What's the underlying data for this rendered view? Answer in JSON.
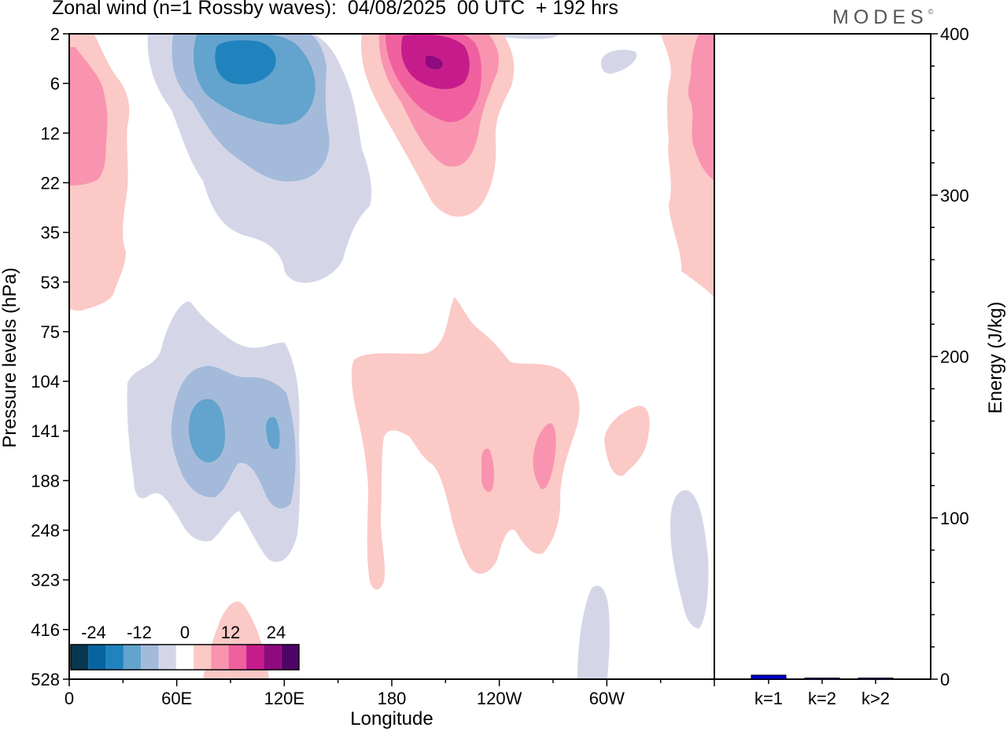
{
  "title": "Zonal wind (n=1 Rossby waves):  04/08/2025  00 UTC  + 192 hrs",
  "logo": {
    "text": "MODES",
    "mark": "©"
  },
  "chart_data": [
    {
      "type": "heatmap",
      "title": "Zonal wind (n=1 Rossby waves):  04/08/2025  00 UTC  + 192 hrs",
      "xlabel": "Longitude",
      "ylabel": "Pressure levels (hPa)",
      "x_ticks": [
        "0",
        "60E",
        "120E",
        "180",
        "120W",
        "60W"
      ],
      "x_tick_values": [
        0,
        60,
        120,
        180,
        240,
        300
      ],
      "xlim": [
        0,
        360
      ],
      "y_ticks": [
        "2",
        "6",
        "12",
        "22",
        "35",
        "53",
        "75",
        "104",
        "141",
        "188",
        "248",
        "323",
        "416",
        "528"
      ],
      "y_scale": "log-pressure (inverted)",
      "colorbar": {
        "labels": [
          "-24",
          "-12",
          "0",
          "12",
          "24"
        ],
        "levels": [
          -30,
          -25,
          -20,
          -15,
          -10,
          -5,
          0,
          5,
          10,
          15,
          20,
          25,
          30
        ],
        "colors": [
          "#08374f",
          "#08649e",
          "#2183be",
          "#62a4cd",
          "#a4bada",
          "#d4d6e8",
          "#ffffff",
          "#fbc9c6",
          "#f994b0",
          "#f0609f",
          "#c61c8b",
          "#8e0a7d",
          "#4f0468"
        ]
      },
      "features": [
        {
          "sign": "negative",
          "region": "upper stratosphere, 40E-170E",
          "min_level": -20
        },
        {
          "sign": "positive",
          "region": "upper stratosphere, 165E-150W",
          "max_level": 25
        },
        {
          "sign": "positive",
          "region": "upper levels, near 0E",
          "max_level": 10
        },
        {
          "sign": "positive",
          "region": "upper levels, near 360E",
          "max_level": 10
        },
        {
          "sign": "negative",
          "region": "upper troposphere, 30E-130E",
          "min_level": -15
        },
        {
          "sign": "positive",
          "region": "upper troposphere, 160E-80W",
          "max_level": 10
        },
        {
          "sign": "positive",
          "region": "near 50W, 140 hPa",
          "max_level": 5
        },
        {
          "sign": "negative",
          "region": "near 20W, 250 hPa",
          "min_level": -5
        },
        {
          "sign": "negative",
          "region": "near 55W, 450 hPa",
          "min_level": -5
        },
        {
          "sign": "positive",
          "region": "near 95E, 450 hPa",
          "max_level": 5
        }
      ]
    },
    {
      "type": "bar",
      "categories": [
        "k=1",
        "k=2",
        "k>2"
      ],
      "values": [
        2.5,
        0.4,
        0.6
      ],
      "ylabel": "Energy (J/kg)",
      "ylim": [
        0,
        400
      ],
      "y_ticks": [
        "0",
        "100",
        "200",
        "300",
        "400"
      ],
      "y_tick_values": [
        0,
        100,
        200,
        300,
        400
      ],
      "colors": [
        "#0000cc",
        "#0000cc",
        "#0000cc"
      ]
    }
  ]
}
